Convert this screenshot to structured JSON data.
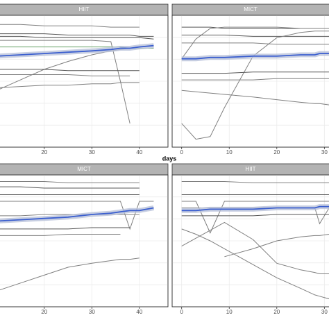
{
  "chart_data": [
    {
      "type": "line",
      "title": "HIIT",
      "xlabel": "days",
      "xlim": [
        -2,
        46
      ],
      "ylim": [
        0,
        100
      ],
      "xticks": [
        20,
        30,
        40
      ],
      "grid": true,
      "x": [
        10,
        15,
        20,
        25,
        30,
        34,
        36,
        38,
        40,
        43
      ],
      "series": [
        {
          "color": "#7f7f7f",
          "values": [
            93,
            93,
            92,
            92,
            92,
            91,
            91,
            91,
            91,
            null
          ]
        },
        {
          "color": "#555555",
          "values": [
            86,
            86,
            86,
            85,
            85,
            85,
            85,
            85,
            84,
            84
          ]
        },
        {
          "color": "#555555",
          "values": [
            84,
            84,
            83,
            83,
            83,
            83,
            83,
            83,
            83,
            82
          ]
        },
        {
          "color": "#6aa36a",
          "values": [
            76,
            76,
            76,
            76,
            76,
            76,
            76,
            75,
            75,
            75
          ]
        },
        {
          "color": "#7f7f7f",
          "values": [
            81,
            81,
            81,
            81,
            81,
            80,
            50,
            18,
            null,
            null
          ]
        },
        {
          "color": "#7f7f7f",
          "values": [
            43,
            51,
            59,
            65,
            70,
            73,
            74,
            75,
            null,
            null
          ]
        },
        {
          "color": "#555555",
          "values": [
            59,
            59,
            59,
            58,
            58,
            58,
            58,
            58,
            58,
            null
          ]
        },
        {
          "color": "#7f7f7f",
          "values": [
            55,
            55,
            55,
            55,
            54,
            54,
            54,
            54,
            null,
            null
          ]
        },
        {
          "color": "#7f7f7f",
          "values": [
            45,
            46,
            47,
            47,
            48,
            48,
            49,
            49,
            49,
            null
          ]
        },
        {
          "color": "#3b5fcf",
          "values": [
            69,
            70,
            71,
            72,
            73,
            74,
            75,
            75,
            76,
            77
          ]
        }
      ]
    },
    {
      "type": "line",
      "title": "MICT",
      "xlim": [
        -2,
        46
      ],
      "ylim": [
        0,
        100
      ],
      "xticks": [
        0,
        10,
        20,
        30
      ],
      "grid": true,
      "x": [
        0,
        3,
        6,
        9,
        15,
        20,
        25,
        28,
        29,
        31
      ],
      "series": [
        {
          "color": "#555555",
          "values": [
            91,
            91,
            91,
            90,
            90,
            90,
            90,
            90,
            90,
            90
          ]
        },
        {
          "color": "#7f7f7f",
          "values": [
            67,
            82,
            90,
            91,
            91,
            91,
            90,
            90,
            90,
            90
          ]
        },
        {
          "color": "#555555",
          "values": [
            85,
            85,
            85,
            85,
            84,
            84,
            84,
            84,
            84,
            84
          ]
        },
        {
          "color": "#7f7f7f",
          "values": [
            79,
            79,
            79,
            79,
            79,
            78,
            78,
            78,
            78,
            78
          ]
        },
        {
          "color": "#7f7f7f",
          "values": [
            18,
            6,
            8,
            30,
            69,
            83,
            87,
            88,
            88,
            88
          ]
        },
        {
          "color": "#555555",
          "values": [
            56,
            56,
            56,
            56,
            57,
            57,
            57,
            57,
            57,
            57
          ]
        },
        {
          "color": "#7f7f7f",
          "values": [
            51,
            51,
            51,
            51,
            51,
            52,
            52,
            52,
            52,
            52
          ]
        },
        {
          "color": "#7f7f7f",
          "values": [
            43,
            42,
            41,
            40,
            38,
            36,
            34,
            33,
            33,
            32
          ]
        },
        {
          "color": "#3b5fcf",
          "values": [
            67,
            67,
            68,
            68,
            69,
            69,
            70,
            70,
            71,
            71
          ]
        }
      ]
    },
    {
      "type": "line",
      "title": "MICT",
      "xlim": [
        -2,
        46
      ],
      "ylim": [
        0,
        100
      ],
      "xticks": [
        20,
        30,
        40
      ],
      "grid": true,
      "x": [
        10,
        15,
        20,
        25,
        30,
        34,
        36,
        38,
        40,
        43
      ],
      "series": [
        {
          "color": "#7f7f7f",
          "values": [
            95,
            95,
            95,
            94,
            94,
            94,
            94,
            94,
            94,
            null
          ]
        },
        {
          "color": "#555555",
          "values": [
            91,
            91,
            90,
            90,
            90,
            90,
            90,
            90,
            90,
            null
          ]
        },
        {
          "color": "#7f7f7f",
          "values": [
            80,
            80,
            80,
            80,
            80,
            80,
            80,
            59,
            80,
            80
          ]
        },
        {
          "color": "#555555",
          "values": [
            85,
            85,
            85,
            85,
            85,
            85,
            85,
            85,
            85,
            null
          ]
        },
        {
          "color": "#7f7f7f",
          "values": [
            69,
            69,
            70,
            70,
            70,
            70,
            70,
            70,
            70,
            null
          ]
        },
        {
          "color": "#555555",
          "values": [
            59,
            59,
            59,
            59,
            60,
            60,
            60,
            60,
            null,
            null
          ]
        },
        {
          "color": "#7f7f7f",
          "values": [
            54,
            54,
            54,
            55,
            55,
            55,
            55,
            null,
            null,
            null
          ]
        },
        {
          "color": "#7f7f7f",
          "values": [
            12,
            18,
            24,
            30,
            33,
            35,
            36,
            36,
            37,
            null
          ]
        },
        {
          "color": "#3b5fcf",
          "values": [
            65,
            66,
            67,
            68,
            70,
            71,
            72,
            73,
            73,
            75
          ]
        }
      ]
    },
    {
      "type": "line",
      "title": "HIIT",
      "xlim": [
        -2,
        46
      ],
      "ylim": [
        0,
        100
      ],
      "xticks": [
        0,
        10,
        20,
        30
      ],
      "grid": true,
      "x": [
        0,
        3,
        6,
        9,
        15,
        20,
        25,
        28,
        29,
        31
      ],
      "series": [
        {
          "color": "#7f7f7f",
          "values": [
            95,
            95,
            95,
            95,
            94,
            94,
            94,
            94,
            94,
            94
          ]
        },
        {
          "color": "#555555",
          "values": [
            85,
            85,
            85,
            85,
            85,
            85,
            85,
            85,
            85,
            85
          ]
        },
        {
          "color": "#7f7f7f",
          "values": [
            80,
            80,
            56,
            80,
            80,
            80,
            80,
            80,
            80,
            80
          ]
        },
        {
          "color": "#7f7f7f",
          "values": [
            75,
            75,
            75,
            75,
            75,
            75,
            75,
            75,
            63,
            75
          ]
        },
        {
          "color": "#7f7f7f",
          "values": [
            46,
            52,
            58,
            64,
            51,
            33,
            28,
            26,
            25,
            25
          ]
        },
        {
          "color": "#7f7f7f",
          "values": [
            59,
            55,
            50,
            44,
            32,
            22,
            14,
            9,
            8,
            6
          ]
        },
        {
          "color": "#7f7f7f",
          "values": [
            null,
            null,
            null,
            38,
            44,
            50,
            53,
            54,
            54,
            55
          ]
        },
        {
          "color": "#555555",
          "values": [
            69,
            69,
            69,
            69,
            69,
            70,
            70,
            70,
            70,
            70
          ]
        },
        {
          "color": "#3b5fcf",
          "values": [
            73,
            73,
            74,
            74,
            74,
            75,
            75,
            75,
            76,
            76
          ]
        }
      ]
    }
  ]
}
